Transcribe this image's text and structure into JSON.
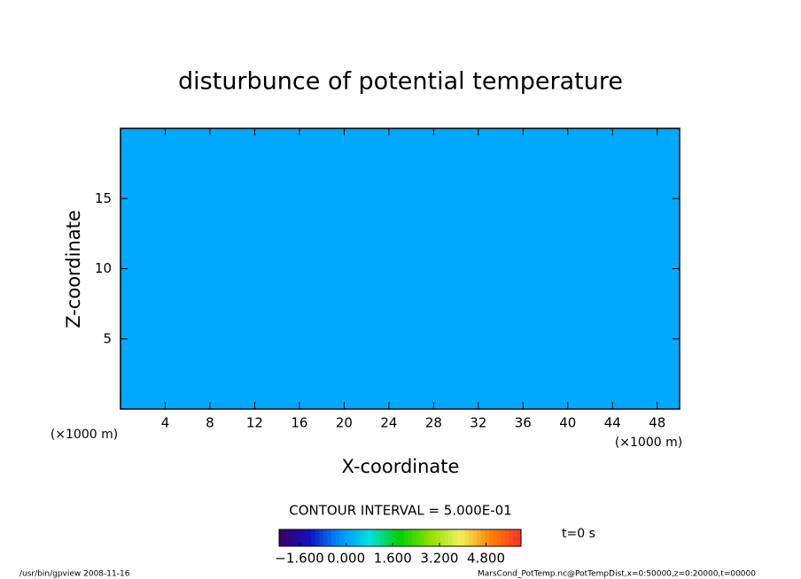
{
  "chart_data": {
    "type": "heatmap",
    "title": "disturbunce of potential temperature",
    "xlabel": "X-coordinate",
    "ylabel": "Z-coordinate",
    "x_unit": "(×1000 m)",
    "y_unit": "(×1000 m)",
    "xlim": [
      0,
      50
    ],
    "ylim": [
      0,
      20
    ],
    "xticks": [
      4,
      8,
      12,
      16,
      20,
      24,
      28,
      32,
      36,
      40,
      44,
      48
    ],
    "yticks": [
      5,
      10,
      15
    ],
    "z": [
      [
        0
      ]
    ],
    "fill_color": "#00a9ff",
    "contour_note": "CONTOUR INTERVAL = 5.000E-01",
    "time_label": "t=0 s",
    "clim": [
      -2.3,
      6.0
    ],
    "colormap": [
      "#3a0060",
      "#1010c0",
      "#0090ff",
      "#00e0e0",
      "#00d000",
      "#90e000",
      "#f0f060",
      "#ff8000",
      "#ff3030"
    ],
    "cticks": [
      {
        "value": -1.6,
        "label": "−1.600"
      },
      {
        "value": 0,
        "label": "0.000"
      },
      {
        "value": 1.6,
        "label": "1.600"
      },
      {
        "value": 3.2,
        "label": "3.200"
      },
      {
        "value": 4.8,
        "label": "4.800"
      }
    ],
    "footer_left": "/usr/bin/gpview   2008-11-16",
    "footer_right": "MarsCond_PotTemp.nc@PotTempDist,x=0:50000,z=0:20000,t=00000"
  }
}
